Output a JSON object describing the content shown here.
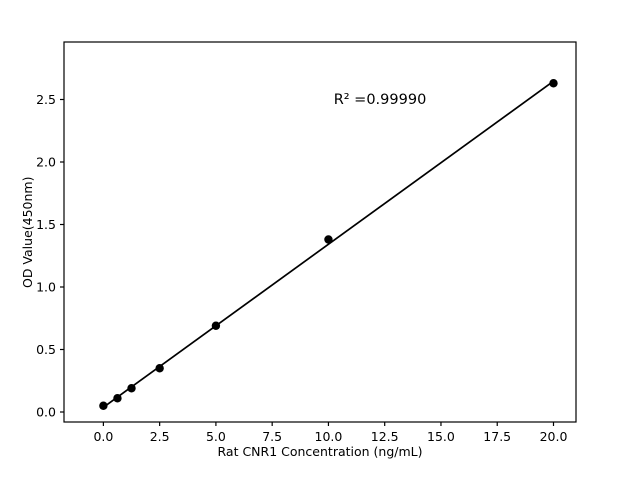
{
  "chart_data": {
    "type": "scatter",
    "title": "",
    "xlabel": "Rat CNR1 Concentration (ng/mL)",
    "ylabel": "OD Value(450nm)",
    "annotation": "R² =0.99990",
    "x": [
      0,
      0.625,
      1.25,
      2.5,
      5,
      10,
      20
    ],
    "y": [
      0.05,
      0.11,
      0.19,
      0.35,
      0.69,
      1.38,
      2.63
    ],
    "fit_line": true,
    "xlim": [
      -1.75,
      21.0
    ],
    "ylim": [
      -0.08,
      2.96
    ],
    "xticks": [
      0,
      2.5,
      5,
      7.5,
      10,
      12.5,
      15,
      17.5,
      20
    ],
    "xtick_labels": [
      "0.0",
      "2.5",
      "5.0",
      "7.5",
      "10.0",
      "12.5",
      "15.0",
      "17.5",
      "20.0"
    ],
    "yticks": [
      0,
      0.5,
      1,
      1.5,
      2,
      2.5
    ],
    "ytick_labels": [
      "0.0",
      "0.5",
      "1.0",
      "1.5",
      "2.0",
      "2.5"
    ],
    "grid": false,
    "legend": "none",
    "marker_color": "#000000",
    "line_color": "#000000",
    "background_color": "#ffffff"
  }
}
